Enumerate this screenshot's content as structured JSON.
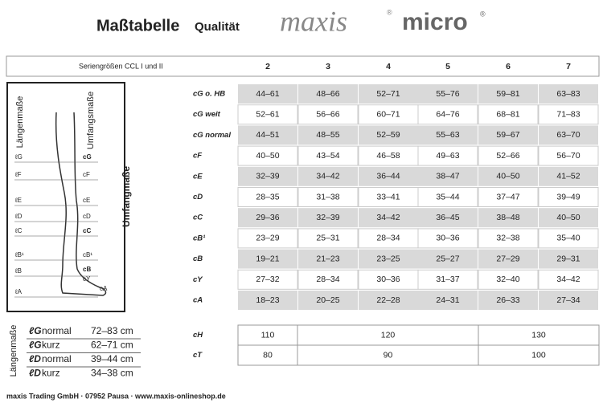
{
  "header": {
    "title": "Maßtabelle",
    "subtitle": "Qualität",
    "brand": "maxis",
    "product": "micro",
    "mark": "®"
  },
  "table": {
    "header_label": "Seriengrößen CCL I und II",
    "sizes": [
      "2",
      "3",
      "4",
      "5",
      "6",
      "7"
    ],
    "rows": [
      {
        "label": "cG o. HB",
        "cells": [
          "44–61",
          "48–66",
          "52–71",
          "55–76",
          "59–81",
          "63–83"
        ]
      },
      {
        "label": "cG weit",
        "cells": [
          "52–61",
          "56–66",
          "60–71",
          "64–76",
          "68–81",
          "71–83"
        ]
      },
      {
        "label": "cG normal",
        "cells": [
          "44–51",
          "48–55",
          "52–59",
          "55–63",
          "59–67",
          "63–70"
        ]
      },
      {
        "label": "cF",
        "cells": [
          "40–50",
          "43–54",
          "46–58",
          "49–63",
          "52–66",
          "56–70"
        ]
      },
      {
        "label": "cE",
        "cells": [
          "32–39",
          "34–42",
          "36–44",
          "38–47",
          "40–50",
          "41–52"
        ]
      },
      {
        "label": "cD",
        "cells": [
          "28–35",
          "31–38",
          "33–41",
          "35–44",
          "37–47",
          "39–49"
        ]
      },
      {
        "label": "cC",
        "cells": [
          "29–36",
          "32–39",
          "34–42",
          "36–45",
          "38–48",
          "40–50"
        ]
      },
      {
        "label": "cB¹",
        "cells": [
          "23–29",
          "25–31",
          "28–34",
          "30–36",
          "32–38",
          "35–40"
        ]
      },
      {
        "label": "cB",
        "cells": [
          "19–21",
          "21–23",
          "23–25",
          "25–27",
          "27–29",
          "29–31"
        ]
      },
      {
        "label": "cY",
        "cells": [
          "27–32",
          "28–34",
          "30–36",
          "31–37",
          "32–40",
          "34–42"
        ]
      },
      {
        "label": "cA",
        "cells": [
          "18–23",
          "20–25",
          "22–28",
          "24–31",
          "26–33",
          "27–34"
        ]
      }
    ]
  },
  "extra_table": {
    "rows": [
      {
        "label": "cH",
        "cells": [
          110,
          120,
          130
        ]
      },
      {
        "label": "cT",
        "cells": [
          80,
          90,
          100
        ]
      }
    ]
  },
  "diagram": {
    "length_label": "Längenmaße",
    "circumference_label": "Umfangsmaße",
    "side_label": "Umfangmaße",
    "left_labels": [
      "ℓG",
      "ℓF",
      "ℓE",
      "ℓD",
      "ℓC",
      "ℓB¹",
      "ℓB",
      "ℓA"
    ],
    "right_labels": [
      "cG",
      "cF",
      "cE",
      "cD",
      "cC",
      "cB¹",
      "cB",
      "cY",
      "cA"
    ]
  },
  "length_table": {
    "title": "Längenmaße",
    "rows": [
      {
        "label": "ℓG",
        "kind": "normal",
        "value": "72–83 cm"
      },
      {
        "label": "ℓG",
        "kind": "kurz",
        "value": "62–71 cm"
      },
      {
        "label": "ℓD",
        "kind": "normal",
        "value": "39–44 cm"
      },
      {
        "label": "ℓD",
        "kind": "kurz",
        "value": "34–38 cm"
      }
    ]
  },
  "footer": "maxis Trading GmbH · 07952 Pausa · www.maxis-onlineshop.de"
}
